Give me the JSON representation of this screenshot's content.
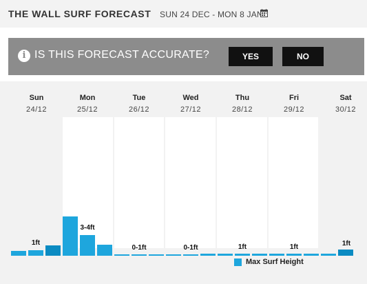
{
  "header": {
    "title": "THE WALL SURF FORECAST",
    "date_range": "SUN 24 DEC - MON 8 JAN"
  },
  "banner": {
    "question": "IS THIS FORECAST ACCURATE?",
    "yes_label": "YES",
    "no_label": "NO"
  },
  "days": [
    {
      "name": "Sun",
      "date": "24/12",
      "label": "1ft"
    },
    {
      "name": "Mon",
      "date": "25/12",
      "label": "3-4ft"
    },
    {
      "name": "Tue",
      "date": "26/12",
      "label": "0-1ft"
    },
    {
      "name": "Wed",
      "date": "27/12",
      "label": "0-1ft"
    },
    {
      "name": "Thu",
      "date": "28/12",
      "label": "1ft"
    },
    {
      "name": "Fri",
      "date": "29/12",
      "label": "1ft"
    },
    {
      "name": "Sat",
      "date": "30/12",
      "label": "1ft"
    }
  ],
  "legend": {
    "label": "Max Surf Height",
    "color": "#1ea6dd"
  },
  "colors": {
    "bar": "#1ea6dd",
    "bar_dark": "#0b8bc2",
    "banner": "#8c8c8c",
    "button": "#111111"
  }
}
